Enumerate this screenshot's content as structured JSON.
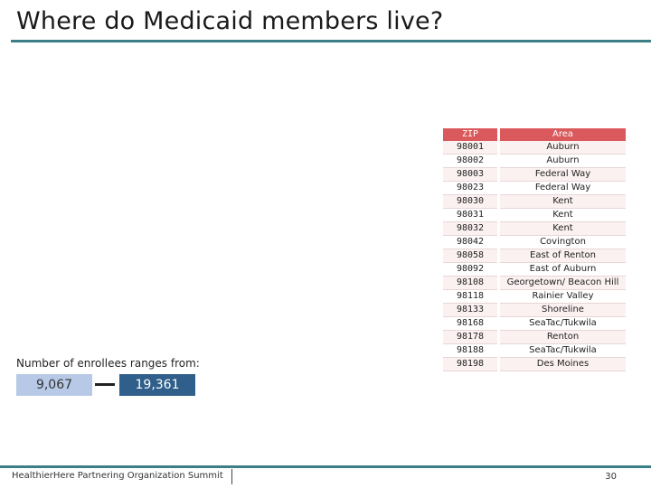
{
  "title": "Where do Medicaid members live?",
  "table": {
    "headers": {
      "zip": "ZIP",
      "area": "Area"
    },
    "rows": [
      {
        "zip": "98001",
        "area": "Auburn"
      },
      {
        "zip": "98002",
        "area": "Auburn"
      },
      {
        "zip": "98003",
        "area": "Federal Way"
      },
      {
        "zip": "98023",
        "area": "Federal Way"
      },
      {
        "zip": "98030",
        "area": "Kent"
      },
      {
        "zip": "98031",
        "area": "Kent"
      },
      {
        "zip": "98032",
        "area": "Kent"
      },
      {
        "zip": "98042",
        "area": "Covington"
      },
      {
        "zip": "98058",
        "area": "East of Renton"
      },
      {
        "zip": "98092",
        "area": "East of Auburn"
      },
      {
        "zip": "98108",
        "area": "Georgetown/ Beacon Hill"
      },
      {
        "zip": "98118",
        "area": "Rainier Valley"
      },
      {
        "zip": "98133",
        "area": "Shoreline"
      },
      {
        "zip": "98168",
        "area": "SeaTac/Tukwila"
      },
      {
        "zip": "98178",
        "area": "Renton"
      },
      {
        "zip": "98188",
        "area": "SeaTac/Tukwila"
      },
      {
        "zip": "98198",
        "area": "Des Moines"
      }
    ]
  },
  "range": {
    "label": "Number of enrollees ranges from:",
    "min": "9,067",
    "max": "19,361"
  },
  "footer": {
    "organization": "HealthierHere Partnering Organization Summit",
    "page_number": "30"
  },
  "colors": {
    "accent_rule": "#3c7f86",
    "table_header": "#d9595c",
    "range_min": "#b7c9e6",
    "range_max": "#2f5f8a"
  }
}
